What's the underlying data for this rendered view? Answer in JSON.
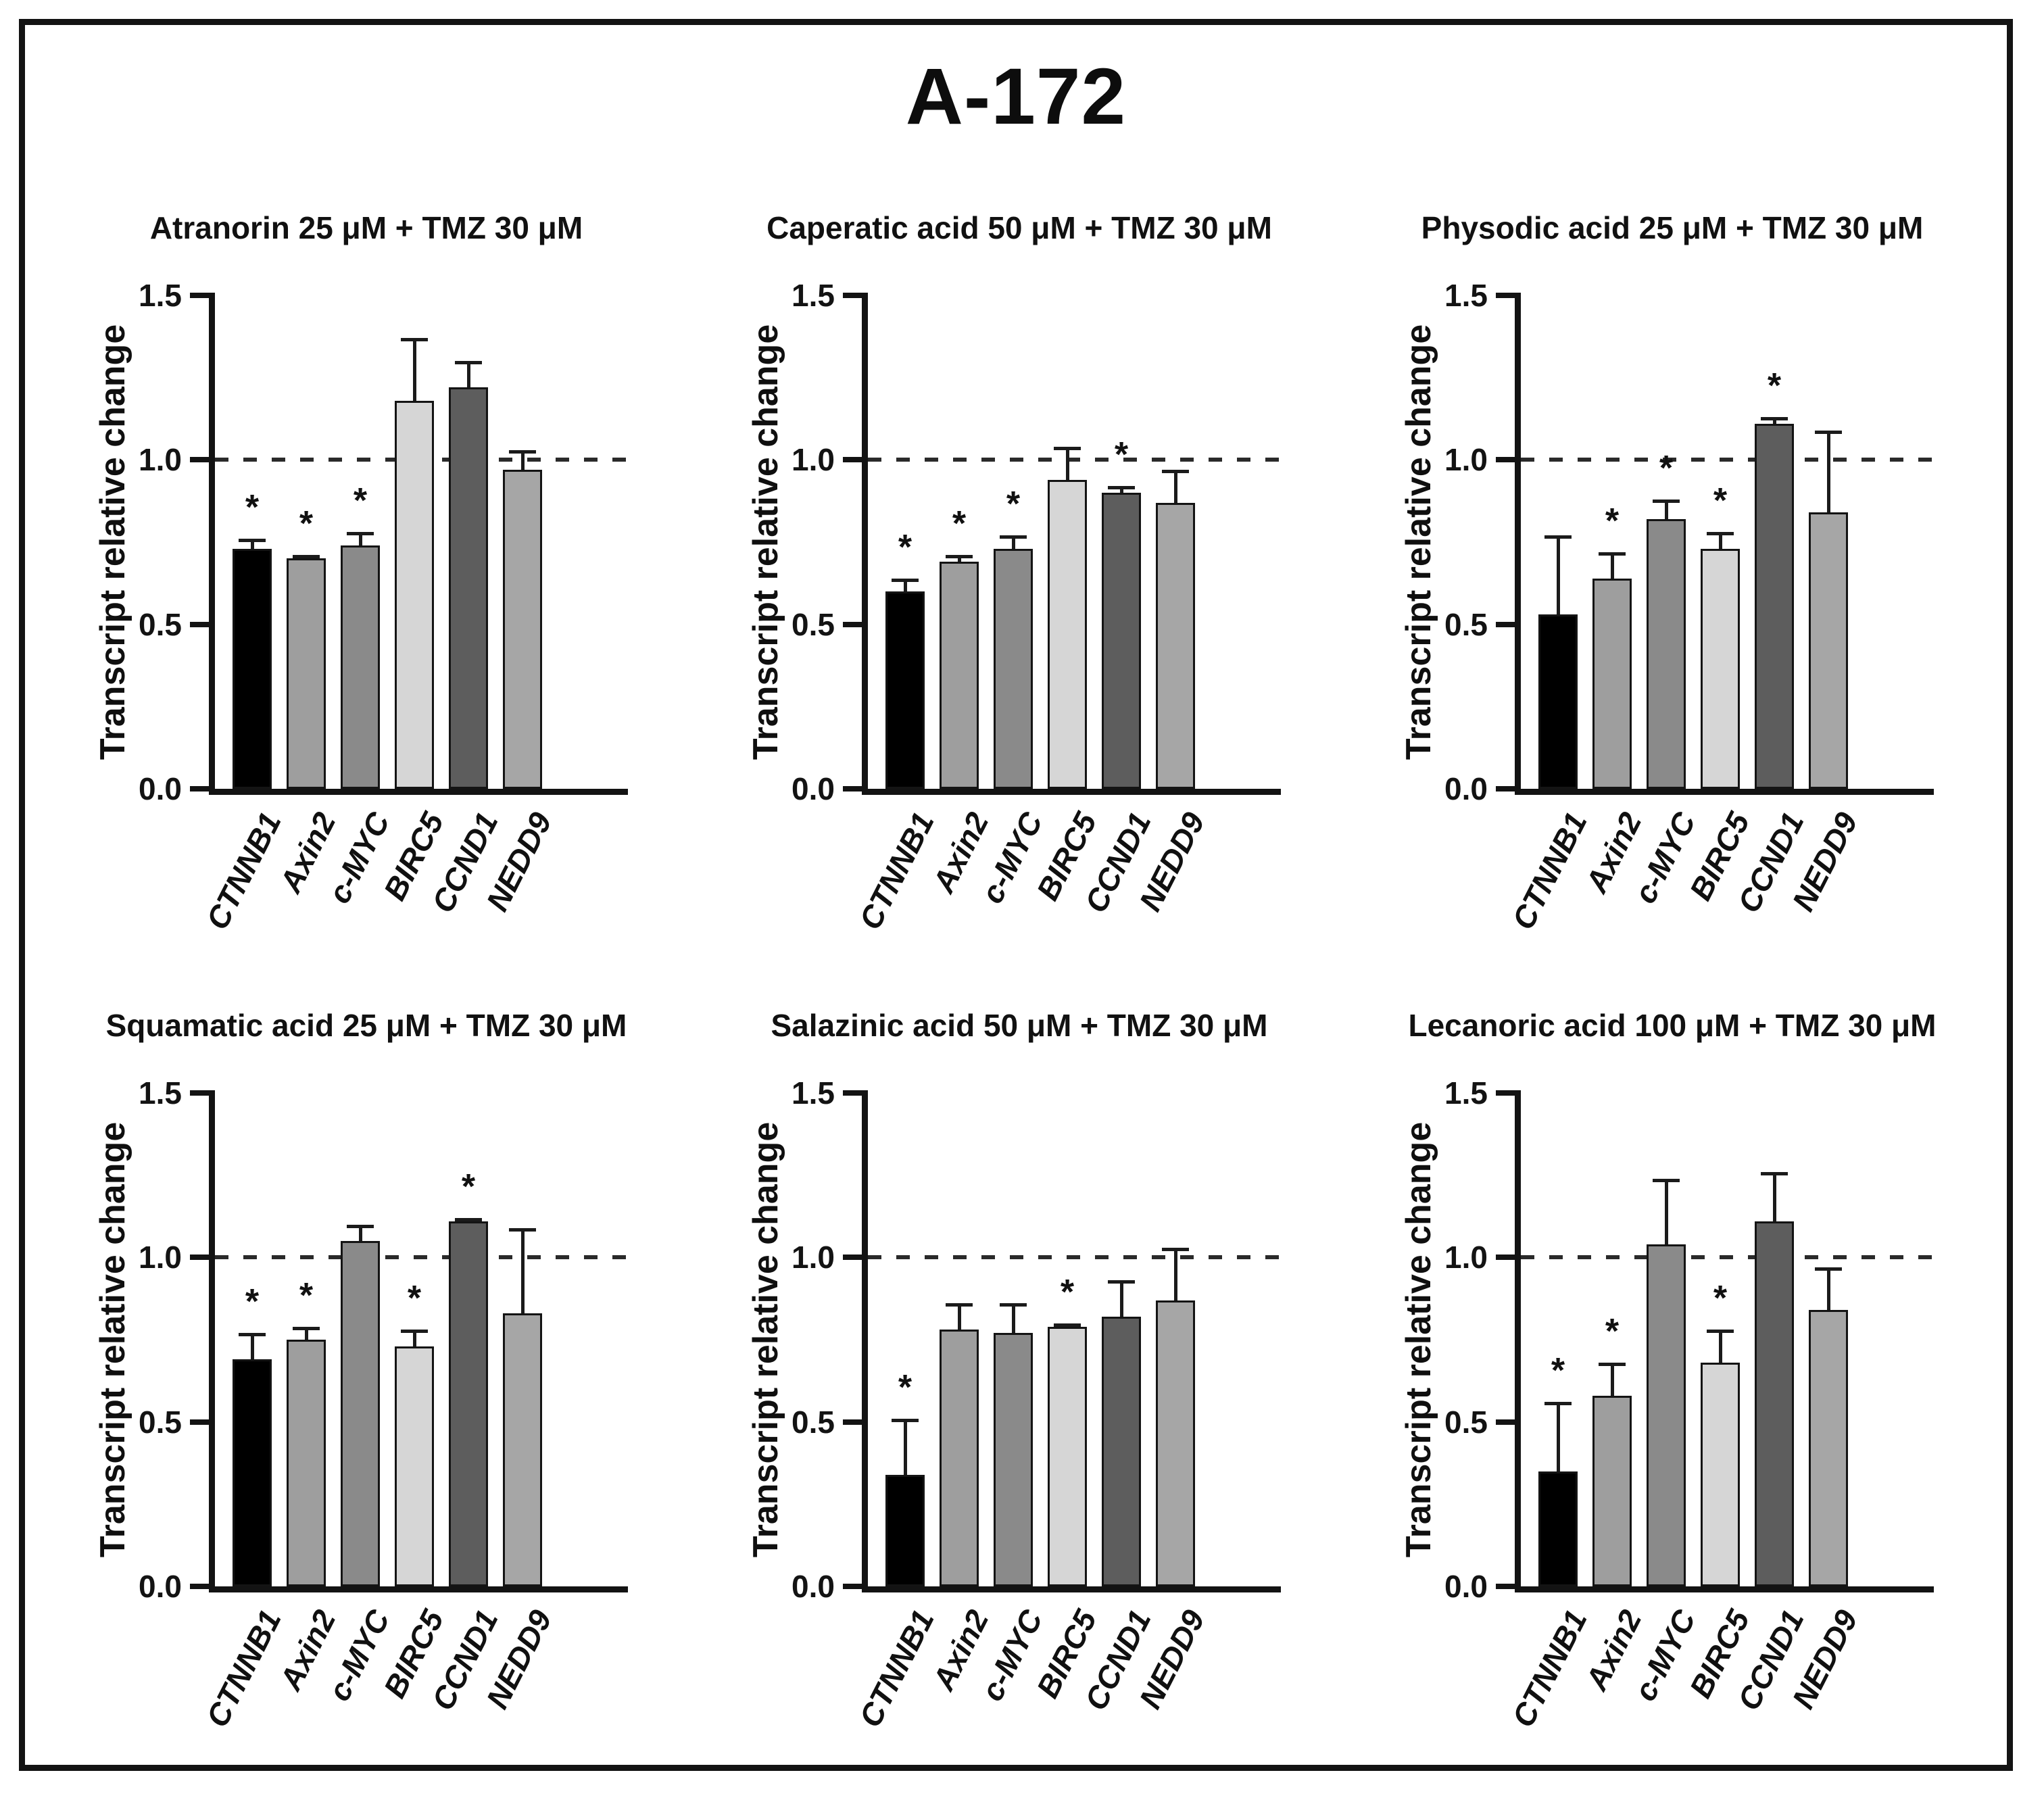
{
  "figure": {
    "title": "A-172",
    "y_axis_label": "Transcript relative change",
    "y_tick_labels": [
      "0.0",
      "0.5",
      "1.0",
      "1.5"
    ],
    "y_ticks": [
      0,
      0.5,
      1.0,
      1.5
    ],
    "y_max": 1.5,
    "reference_line": 1.0,
    "significance_marker": "*",
    "categories": [
      "CTNNB1",
      "Axin2",
      "c-MYC",
      "BIRC5",
      "CCND1",
      "NEDD9"
    ],
    "bar_colors": [
      "#000000",
      "#9e9e9e",
      "#8a8a8a",
      "#d6d6d6",
      "#5d5d5d",
      "#a6a6a6"
    ]
  },
  "chart_data": [
    {
      "type": "bar",
      "title": "Atranorin 25 μM + TMZ 30 μM",
      "categories": [
        "CTNNB1",
        "Axin2",
        "c-MYC",
        "BIRC5",
        "CCND1",
        "NEDD9"
      ],
      "values": [
        0.73,
        0.7,
        0.74,
        1.18,
        1.22,
        0.97
      ],
      "errors": [
        0.03,
        0.01,
        0.04,
        0.19,
        0.08,
        0.06
      ],
      "significant": [
        true,
        true,
        true,
        false,
        false,
        false
      ],
      "ylabel": "Transcript relative change",
      "ylim": [
        0,
        1.5
      ],
      "reference_line": 1.0
    },
    {
      "type": "bar",
      "title": "Caperatic acid 50 μM + TMZ 30 μM",
      "categories": [
        "CTNNB1",
        "Axin2",
        "c-MYC",
        "BIRC5",
        "CCND1",
        "NEDD9"
      ],
      "values": [
        0.6,
        0.69,
        0.73,
        0.94,
        0.9,
        0.87
      ],
      "errors": [
        0.04,
        0.02,
        0.04,
        0.1,
        0.02,
        0.1
      ],
      "significant": [
        true,
        true,
        true,
        false,
        true,
        false
      ],
      "ylabel": "Transcript relative change",
      "ylim": [
        0,
        1.5
      ],
      "reference_line": 1.0
    },
    {
      "type": "bar",
      "title": "Physodic acid 25 μM + TMZ 30 μM",
      "categories": [
        "CTNNB1",
        "Axin2",
        "c-MYC",
        "BIRC5",
        "CCND1",
        "NEDD9"
      ],
      "values": [
        0.53,
        0.64,
        0.82,
        0.73,
        1.11,
        0.84
      ],
      "errors": [
        0.24,
        0.08,
        0.06,
        0.05,
        0.02,
        0.25
      ],
      "significant": [
        false,
        true,
        true,
        true,
        true,
        false
      ],
      "ylabel": "Transcript relative change",
      "ylim": [
        0,
        1.5
      ],
      "reference_line": 1.0
    },
    {
      "type": "bar",
      "title": "Squamatic acid 25 μM + TMZ 30 μM",
      "categories": [
        "CTNNB1",
        "Axin2",
        "c-MYC",
        "BIRC5",
        "CCND1",
        "NEDD9"
      ],
      "values": [
        0.69,
        0.75,
        1.05,
        0.73,
        1.11,
        0.83
      ],
      "errors": [
        0.08,
        0.04,
        0.05,
        0.05,
        0.01,
        0.26
      ],
      "significant": [
        true,
        true,
        false,
        true,
        true,
        false
      ],
      "ylabel": "Transcript relative change",
      "ylim": [
        0,
        1.5
      ],
      "reference_line": 1.0
    },
    {
      "type": "bar",
      "title": "Salazinic acid 50 μM + TMZ 30 μM",
      "categories": [
        "CTNNB1",
        "Axin2",
        "c-MYC",
        "BIRC5",
        "CCND1",
        "NEDD9"
      ],
      "values": [
        0.34,
        0.78,
        0.77,
        0.79,
        0.82,
        0.87
      ],
      "errors": [
        0.17,
        0.08,
        0.09,
        0.01,
        0.11,
        0.16
      ],
      "significant": [
        true,
        false,
        false,
        true,
        false,
        false
      ],
      "ylabel": "Transcript relative change",
      "ylim": [
        0,
        1.5
      ],
      "reference_line": 1.0
    },
    {
      "type": "bar",
      "title": "Lecanoric acid 100 μM + TMZ 30 μM",
      "categories": [
        "CTNNB1",
        "Axin2",
        "c-MYC",
        "BIRC5",
        "CCND1",
        "NEDD9"
      ],
      "values": [
        0.35,
        0.58,
        1.04,
        0.68,
        1.11,
        0.84
      ],
      "errors": [
        0.21,
        0.1,
        0.2,
        0.1,
        0.15,
        0.13
      ],
      "significant": [
        true,
        true,
        false,
        true,
        false,
        false
      ],
      "ylabel": "Transcript relative change",
      "ylim": [
        0,
        1.5
      ],
      "reference_line": 1.0
    }
  ]
}
